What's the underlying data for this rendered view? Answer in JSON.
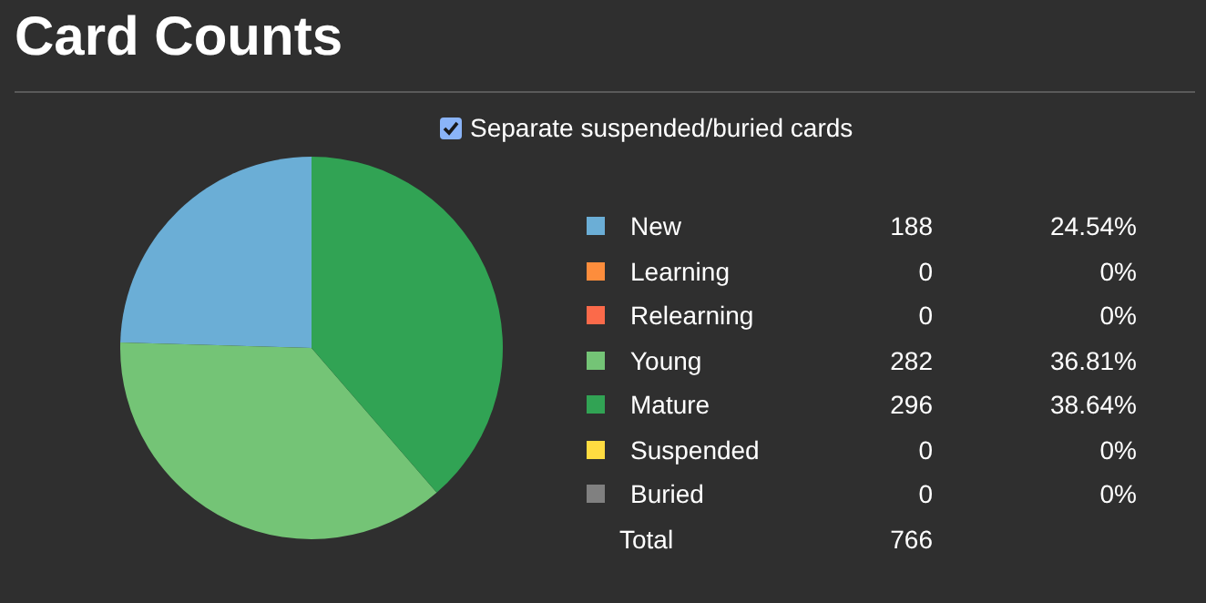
{
  "chart_data": {
    "type": "pie",
    "title": "Card Counts",
    "annotations": [
      "Separate suspended/buried cards",
      "Total",
      "24.54%",
      "0%",
      "0%",
      "36.81%",
      "38.64%",
      "0%",
      "0%"
    ],
    "categories": [
      "New",
      "Learning",
      "Relearning",
      "Young",
      "Mature",
      "Suspended",
      "Buried"
    ],
    "values": [
      188,
      0,
      0,
      282,
      296,
      0,
      0
    ],
    "colors": [
      "#6baed6",
      "#fd8d3c",
      "#fb6a4a",
      "#74c476",
      "#31a354",
      "#ffdc41",
      "#808080"
    ],
    "value_labels": [
      "188",
      "0",
      "0",
      "282",
      "296",
      "0",
      "0"
    ],
    "totals": [
      "766"
    ],
    "legend": "right"
  }
}
